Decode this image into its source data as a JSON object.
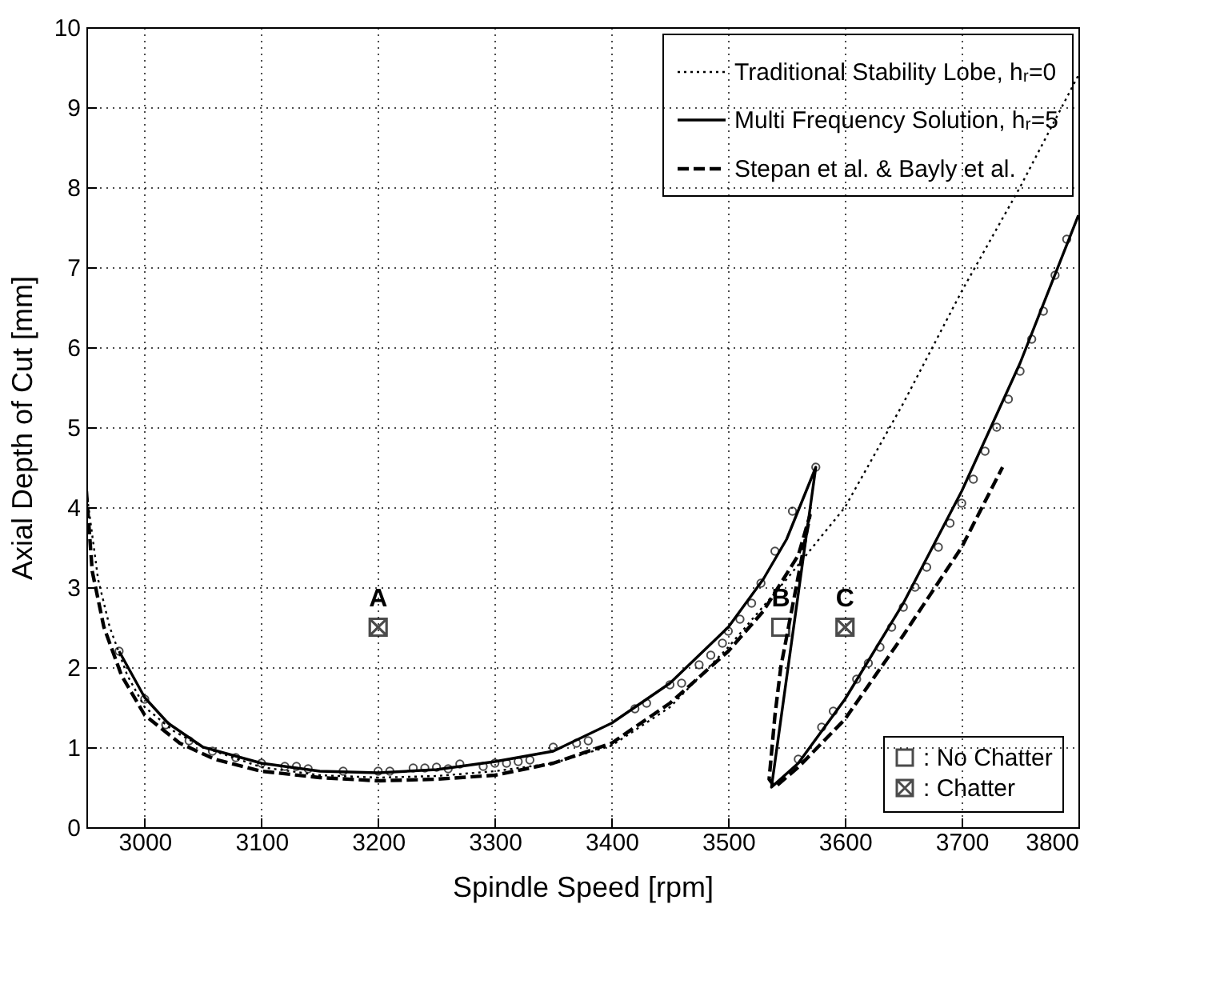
{
  "chart_data": {
    "type": "line",
    "xlabel": "Spindle Speed [rpm]",
    "ylabel": "Axial Depth of Cut [mm]",
    "xlim": [
      2950,
      3800
    ],
    "xticks": [
      3000,
      3100,
      3200,
      3300,
      3400,
      3500,
      3600,
      3700,
      3800
    ],
    "ylim": [
      0,
      10
    ],
    "yticks": [
      0,
      1,
      2,
      3,
      4,
      5,
      6,
      7,
      8,
      9,
      10
    ],
    "grid": true,
    "legend": "right",
    "series": [
      {
        "name": "Traditional Stability Lobe, hᵣ=0",
        "line_style": "dotted",
        "color": "#000000",
        "x": [
          2950,
          2960,
          2970,
          2985,
          3000,
          3025,
          3050,
          3100,
          3150,
          3200,
          3250,
          3300,
          3350,
          3400,
          3450,
          3500,
          3550,
          3600,
          3650,
          3700,
          3750,
          3800
        ],
        "values": [
          4.2,
          3.1,
          2.5,
          1.9,
          1.5,
          1.2,
          1.0,
          0.75,
          0.65,
          0.62,
          0.64,
          0.7,
          0.8,
          1.02,
          1.5,
          2.25,
          3.1,
          4.0,
          5.3,
          6.7,
          8.0,
          9.4
        ]
      },
      {
        "name": "Multi Frequency Solution, hᵣ=5",
        "line_style": "solid",
        "color": "#000000",
        "x": [
          2978,
          3000,
          3020,
          3050,
          3100,
          3150,
          3200,
          3250,
          3300,
          3350,
          3400,
          3450,
          3500,
          3530,
          3550,
          3575,
          3537,
          3560,
          3600,
          3650,
          3700,
          3750,
          3800
        ],
        "values": [
          2.2,
          1.62,
          1.3,
          1.0,
          0.8,
          0.7,
          0.68,
          0.72,
          0.82,
          0.95,
          1.3,
          1.8,
          2.5,
          3.1,
          3.6,
          4.5,
          0.5,
          0.8,
          1.6,
          2.8,
          4.2,
          5.8,
          7.65
        ]
      },
      {
        "name": "Stepan et al. & Bayly et al.",
        "line_style": "dashed",
        "color": "#000000",
        "x": [
          2950,
          2955,
          2965,
          2980,
          3000,
          3030,
          3060,
          3100,
          3150,
          3200,
          3250,
          3300,
          3350,
          3400,
          3450,
          3500,
          3530,
          3560,
          3570,
          3545,
          3540,
          3535,
          3540,
          3560,
          3600,
          3650,
          3700,
          3735
        ],
        "values": [
          4.2,
          3.2,
          2.5,
          1.9,
          1.4,
          1.05,
          0.85,
          0.7,
          0.62,
          0.58,
          0.6,
          0.65,
          0.8,
          1.05,
          1.55,
          2.2,
          2.7,
          3.4,
          3.9,
          2.0,
          1.4,
          0.6,
          0.5,
          0.75,
          1.35,
          2.4,
          3.5,
          4.5
        ]
      },
      {
        "type": "scatter",
        "marker": "circle",
        "color": "#000000",
        "x": [
          2978,
          3000,
          3018,
          3038,
          3058,
          3078,
          3100,
          3120,
          3130,
          3140,
          3170,
          3200,
          3210,
          3230,
          3240,
          3250,
          3260,
          3270,
          3290,
          3300,
          3310,
          3320,
          3330,
          3350,
          3370,
          3380,
          3420,
          3430,
          3450,
          3460,
          3475,
          3485,
          3495,
          3500,
          3510,
          3520,
          3528,
          3540,
          3555,
          3575,
          3560,
          3580,
          3590,
          3610,
          3620,
          3630,
          3640,
          3650,
          3660,
          3670,
          3680,
          3690,
          3700,
          3710,
          3720,
          3730,
          3740,
          3750,
          3760,
          3770,
          3780,
          3790
        ],
        "values": [
          2.2,
          1.6,
          1.28,
          1.08,
          0.95,
          0.87,
          0.8,
          0.76,
          0.76,
          0.73,
          0.7,
          0.7,
          0.7,
          0.74,
          0.74,
          0.75,
          0.73,
          0.79,
          0.76,
          0.8,
          0.8,
          0.82,
          0.84,
          1.0,
          1.05,
          1.08,
          1.48,
          1.55,
          1.78,
          1.8,
          2.03,
          2.15,
          2.3,
          2.45,
          2.6,
          2.8,
          3.05,
          3.45,
          3.95,
          4.5,
          0.85,
          1.25,
          1.45,
          1.85,
          2.05,
          2.25,
          2.5,
          2.75,
          3.0,
          3.25,
          3.5,
          3.8,
          4.05,
          4.35,
          4.7,
          5.0,
          5.35,
          5.7,
          6.1,
          6.45,
          6.9,
          7.35
        ]
      },
      {
        "name": ": No Chatter",
        "type": "scatter",
        "marker": "square",
        "color": "#000000",
        "x": [
          3545
        ],
        "values": [
          2.5
        ]
      },
      {
        "name": ": Chatter",
        "type": "scatter",
        "marker": "cross",
        "color": "#000000",
        "x": [
          3200,
          3600
        ],
        "values": [
          2.5,
          2.5
        ]
      }
    ],
    "annotations": [
      {
        "text": "A",
        "x": 3200,
        "y": 2.5
      },
      {
        "text": "B",
        "x": 3545,
        "y": 2.5
      },
      {
        "text": "C",
        "x": 3600,
        "y": 2.5
      }
    ]
  }
}
